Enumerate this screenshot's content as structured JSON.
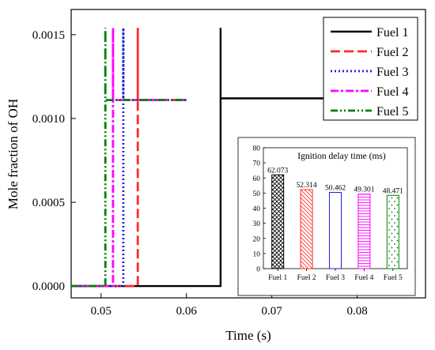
{
  "chart_data": [
    {
      "type": "line",
      "xlabel": "Time (s)",
      "ylabel": "Mole fraction of OH",
      "xlim": [
        0.0465,
        0.088
      ],
      "ylim": [
        -7e-05,
        0.00165
      ],
      "xticks": [
        "0.05",
        "0.06",
        "0.07",
        "0.08"
      ],
      "xtick_values": [
        0.05,
        0.06,
        0.07,
        0.08
      ],
      "yticks": [
        "0.0000",
        "0.0005",
        "0.0010",
        "0.0015"
      ],
      "ytick_values": [
        0,
        0.0005,
        0.001,
        0.0015
      ],
      "grid": false,
      "legend_position": "top-right",
      "series": [
        {
          "name": "Fuel 1",
          "color": "#000000",
          "dash": "solid",
          "x": [
            0.0465,
            0.064,
            0.064,
            0.064,
            0.0775
          ],
          "y": [
            0,
            0,
            0.00154,
            0.00112,
            0.00112
          ]
        },
        {
          "name": "Fuel 2",
          "color": "#ff2a2a",
          "dash": "dashed",
          "x": [
            0.0465,
            0.0543,
            0.0543,
            0.0543,
            0.06
          ],
          "y": [
            0,
            0,
            0.00154,
            0.00111,
            0.00111
          ]
        },
        {
          "name": "Fuel 3",
          "color": "#1f1fe0",
          "dash": "dotted",
          "x": [
            0.0465,
            0.0526,
            0.0526,
            0.0526,
            0.06
          ],
          "y": [
            0,
            0,
            0.00154,
            0.00111,
            0.00111
          ]
        },
        {
          "name": "Fuel 4",
          "color": "#ff00ff",
          "dash": "dashdot",
          "x": [
            0.0465,
            0.0514,
            0.0514,
            0.0514,
            0.06
          ],
          "y": [
            0,
            0,
            0.00154,
            0.00111,
            0.00111
          ]
        },
        {
          "name": "Fuel 5",
          "color": "#008000",
          "dash": "dashdotdot",
          "x": [
            0.0465,
            0.0505,
            0.0505,
            0.0505,
            0.06
          ],
          "y": [
            0,
            0,
            0.00154,
            0.00111,
            0.00111
          ]
        }
      ]
    },
    {
      "type": "bar",
      "title": "Ignition delay time (ms)",
      "categories": [
        "Fuel 1",
        "Fuel 2",
        "Fuel 3",
        "Fuel 4",
        "Fuel 5"
      ],
      "values": [
        62.073,
        52.314,
        50.462,
        49.301,
        48.471
      ],
      "value_labels": [
        "62.073",
        "52.314",
        "50.462",
        "49.301",
        "48.471"
      ],
      "ylim": [
        0,
        80
      ],
      "yticks": [
        "0",
        "10",
        "20",
        "30",
        "40",
        "50",
        "60",
        "70",
        "80"
      ],
      "ytick_values": [
        0,
        10,
        20,
        30,
        40,
        50,
        60,
        70,
        80
      ],
      "colors": [
        "#000000",
        "#ff2a2a",
        "#1f1fe0",
        "#ff00ff",
        "#008000"
      ],
      "patterns": [
        "crosshatch",
        "diagonal",
        "none",
        "horizontal",
        "dots"
      ]
    }
  ]
}
